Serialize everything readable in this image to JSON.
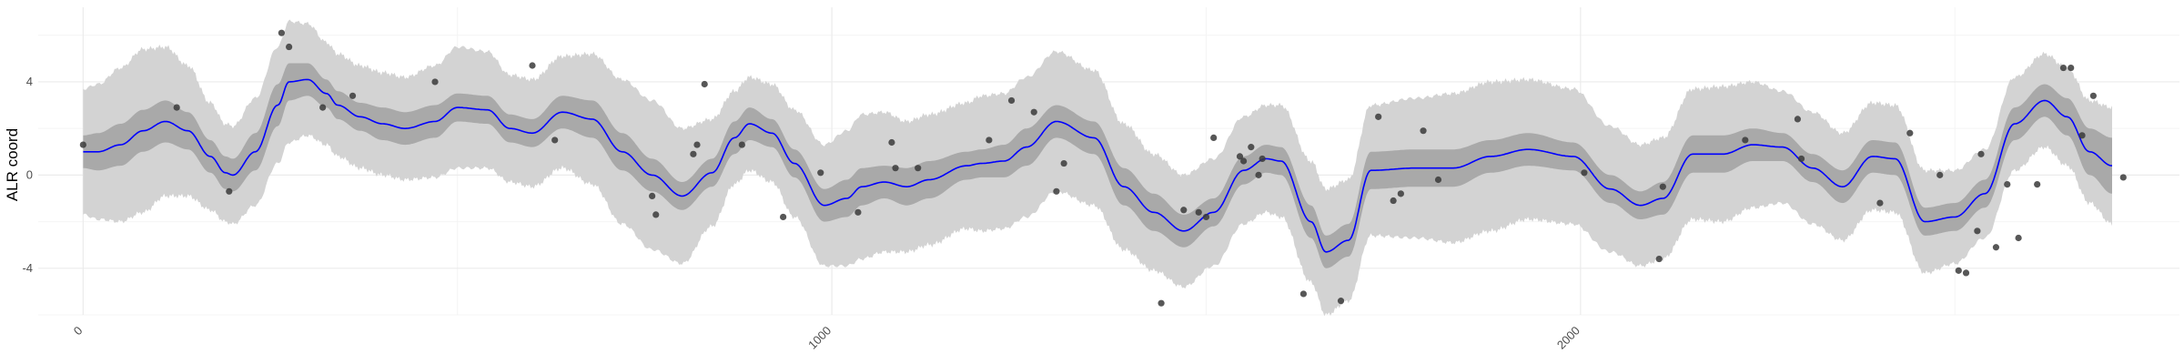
{
  "chart_data": {
    "type": "line",
    "title": "",
    "xlabel": "",
    "ylabel": "ALR coord",
    "xlim": [
      -60,
      2800
    ],
    "ylim": [
      -6,
      7.2
    ],
    "x_ticks": [
      0,
      1000,
      2000
    ],
    "x_tick_labels": [
      "0",
      "1000",
      "2000"
    ],
    "y_ticks": [
      -4,
      0,
      4
    ],
    "y_tick_labels": [
      "-4",
      "0",
      "4"
    ],
    "grid": true,
    "colors": {
      "line": "#0000ff",
      "inner_band": "#a9a9a9",
      "outer_band": "#d3d3d3",
      "points": "#3a3a3a",
      "grid_major": "#ebebeb",
      "grid_minor": "#f4f4f4"
    },
    "series": [
      {
        "kind": "mean",
        "x": [
          0,
          20,
          50,
          80,
          110,
          140,
          170,
          190,
          200,
          230,
          260,
          275,
          300,
          325,
          340,
          370,
          400,
          430,
          470,
          500,
          540,
          570,
          600,
          640,
          680,
          720,
          760,
          800,
          840,
          870,
          890,
          920,
          950,
          990,
          1020,
          1040,
          1070,
          1100,
          1130,
          1180,
          1200,
          1230,
          1260,
          1300,
          1350,
          1390,
          1430,
          1470,
          1510,
          1550,
          1580,
          1600,
          1640,
          1660,
          1690,
          1720,
          1780,
          1830,
          1880,
          1930,
          1990,
          2040,
          2080,
          2110,
          2150,
          2190,
          2230,
          2270,
          2310,
          2350,
          2390,
          2420,
          2460,
          2500,
          2540,
          2580,
          2620,
          2650,
          2680,
          2710
        ],
        "values": [
          1.0,
          1.0,
          1.3,
          1.9,
          2.3,
          1.9,
          0.8,
          0.1,
          0.0,
          1.0,
          3.0,
          4.0,
          4.1,
          3.5,
          3.0,
          2.5,
          2.2,
          2.0,
          2.3,
          2.9,
          2.8,
          2.0,
          1.8,
          2.7,
          2.4,
          1.0,
          0.0,
          -0.9,
          0.1,
          1.6,
          2.2,
          1.8,
          0.5,
          -1.3,
          -1.0,
          -0.5,
          -0.3,
          -0.5,
          -0.2,
          0.4,
          0.5,
          0.6,
          1.2,
          2.3,
          1.6,
          -0.5,
          -1.6,
          -2.4,
          -1.6,
          0.2,
          0.7,
          0.6,
          -2.0,
          -3.3,
          -2.8,
          0.2,
          0.3,
          0.3,
          0.8,
          1.1,
          0.8,
          -0.6,
          -1.3,
          -1.0,
          0.9,
          0.9,
          1.3,
          1.2,
          0.3,
          -0.5,
          0.8,
          0.7,
          -2.0,
          -1.8,
          -0.8,
          2.2,
          3.2,
          2.5,
          1.0,
          0.4
        ],
        "ci50_half_width": [
          0.7,
          0.8,
          0.9,
          0.9,
          0.9,
          0.8,
          0.7,
          0.7,
          0.7,
          0.8,
          0.9,
          0.8,
          0.7,
          0.6,
          0.6,
          0.6,
          0.7,
          0.7,
          0.7,
          0.6,
          0.6,
          0.6,
          0.6,
          0.7,
          0.8,
          0.8,
          0.7,
          0.6,
          0.6,
          0.7,
          0.7,
          0.6,
          0.6,
          0.7,
          0.8,
          0.8,
          0.7,
          0.8,
          0.8,
          0.6,
          0.6,
          0.7,
          0.8,
          0.7,
          0.7,
          0.8,
          0.8,
          0.7,
          0.6,
          0.6,
          0.6,
          0.6,
          0.7,
          0.7,
          0.7,
          0.8,
          0.8,
          0.8,
          0.7,
          0.7,
          0.6,
          0.6,
          0.6,
          0.7,
          0.8,
          0.8,
          0.7,
          0.6,
          0.6,
          0.7,
          0.7,
          0.7,
          0.6,
          0.6,
          0.6,
          0.7,
          0.7,
          0.8,
          1.0,
          1.2
        ],
        "ci95_half_width": [
          2.7,
          2.9,
          3.3,
          3.5,
          3.2,
          2.8,
          2.3,
          2.1,
          2.1,
          2.3,
          2.5,
          2.6,
          2.4,
          2.2,
          2.2,
          2.2,
          2.2,
          2.2,
          2.4,
          2.6,
          2.5,
          2.3,
          2.3,
          2.4,
          2.8,
          3.1,
          3.2,
          2.9,
          2.3,
          2.0,
          2.0,
          2.1,
          2.3,
          2.6,
          2.9,
          3.1,
          3.0,
          2.8,
          2.8,
          2.7,
          2.9,
          2.9,
          3.0,
          3.0,
          2.9,
          2.7,
          2.5,
          2.4,
          2.3,
          2.3,
          2.3,
          2.4,
          2.6,
          2.7,
          2.6,
          2.8,
          3.0,
          3.2,
          3.2,
          3.0,
          2.9,
          2.7,
          2.6,
          2.6,
          2.8,
          2.9,
          2.7,
          2.4,
          2.4,
          2.3,
          2.3,
          2.3,
          2.2,
          2.0,
          1.9,
          2.0,
          2.0,
          2.1,
          2.2,
          2.5
        ]
      },
      {
        "kind": "observed",
        "points": [
          [
            0,
            1.3
          ],
          [
            125,
            2.9
          ],
          [
            195,
            -0.7
          ],
          [
            265,
            6.1
          ],
          [
            275,
            5.5
          ],
          [
            320,
            2.9
          ],
          [
            360,
            3.4
          ],
          [
            470,
            4.0
          ],
          [
            600,
            4.7
          ],
          [
            630,
            1.5
          ],
          [
            760,
            -0.9
          ],
          [
            765,
            -1.7
          ],
          [
            815,
            0.9
          ],
          [
            820,
            1.3
          ],
          [
            830,
            3.9
          ],
          [
            880,
            1.3
          ],
          [
            935,
            -1.8
          ],
          [
            985,
            0.1
          ],
          [
            1035,
            -1.6
          ],
          [
            1080,
            1.4
          ],
          [
            1085,
            0.3
          ],
          [
            1115,
            0.3
          ],
          [
            1210,
            1.5
          ],
          [
            1240,
            3.2
          ],
          [
            1270,
            2.7
          ],
          [
            1300,
            -0.7
          ],
          [
            1310,
            0.5
          ],
          [
            1440,
            -5.5
          ],
          [
            1470,
            -1.5
          ],
          [
            1490,
            -1.6
          ],
          [
            1500,
            -1.8
          ],
          [
            1510,
            1.6
          ],
          [
            1545,
            0.8
          ],
          [
            1550,
            0.6
          ],
          [
            1560,
            1.2
          ],
          [
            1570,
            0.0
          ],
          [
            1575,
            0.7
          ],
          [
            1630,
            -5.1
          ],
          [
            1680,
            -5.4
          ],
          [
            1730,
            2.5
          ],
          [
            1750,
            -1.1
          ],
          [
            1760,
            -0.8
          ],
          [
            1790,
            1.9
          ],
          [
            1810,
            -0.2
          ],
          [
            2005,
            0.1
          ],
          [
            2105,
            -3.6
          ],
          [
            2110,
            -0.5
          ],
          [
            2220,
            1.5
          ],
          [
            2290,
            2.4
          ],
          [
            2295,
            0.7
          ],
          [
            2400,
            -1.2
          ],
          [
            2440,
            1.8
          ],
          [
            2480,
            0.0
          ],
          [
            2505,
            -4.1
          ],
          [
            2515,
            -4.2
          ],
          [
            2530,
            -2.4
          ],
          [
            2535,
            0.9
          ],
          [
            2555,
            -3.1
          ],
          [
            2570,
            -0.4
          ],
          [
            2585,
            -2.7
          ],
          [
            2610,
            -0.4
          ],
          [
            2645,
            4.6
          ],
          [
            2655,
            4.6
          ],
          [
            2670,
            1.7
          ],
          [
            2685,
            3.4
          ],
          [
            2725,
            -0.1
          ]
        ]
      }
    ]
  }
}
